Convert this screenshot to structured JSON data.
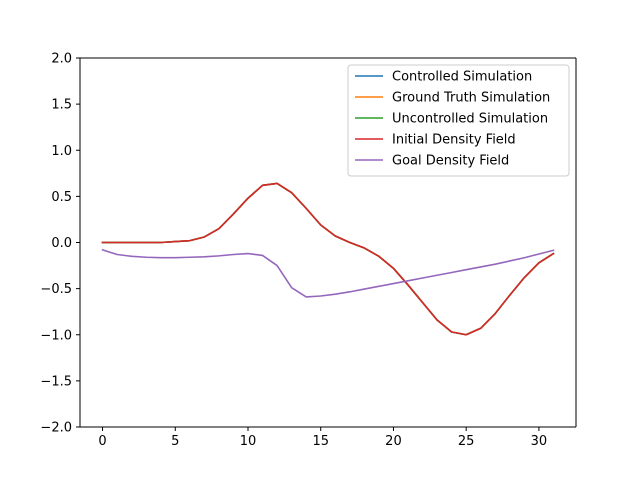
{
  "chart_data": {
    "type": "line",
    "title": "",
    "xlabel": "",
    "ylabel": "",
    "xlim": [
      -1.55,
      32.55
    ],
    "ylim": [
      -2.0,
      2.0
    ],
    "grid": false,
    "legend_position": "top-right",
    "x_ticks": [
      0,
      5,
      10,
      15,
      20,
      25,
      30
    ],
    "x_tick_labels": [
      "0",
      "5",
      "10",
      "15",
      "20",
      "25",
      "30"
    ],
    "y_ticks": [
      2.0,
      1.5,
      1.0,
      0.5,
      0.0,
      -0.5,
      -1.0,
      -1.5,
      -2.0
    ],
    "y_tick_labels": [
      "2.0",
      "1.5",
      "1.0",
      "0.5",
      "0.0",
      "−0.5",
      "−1.0",
      "−1.5",
      "−2.0"
    ],
    "x": [
      0,
      1,
      2,
      3,
      4,
      5,
      6,
      7,
      8,
      9,
      10,
      11,
      12,
      13,
      14,
      15,
      16,
      17,
      18,
      19,
      20,
      21,
      22,
      23,
      24,
      25,
      26,
      27,
      28,
      29,
      30,
      31
    ],
    "series": [
      {
        "name": "Controlled Simulation",
        "color": "#1f77b4",
        "values": [
          0.0,
          0.0,
          0.0,
          0.0,
          0.0,
          0.01,
          0.02,
          0.06,
          0.15,
          0.31,
          0.48,
          0.62,
          0.64,
          0.54,
          0.37,
          0.19,
          0.07,
          0.0,
          -0.06,
          -0.15,
          -0.28,
          -0.46,
          -0.65,
          -0.84,
          -0.97,
          -1.0,
          -0.93,
          -0.77,
          -0.57,
          -0.38,
          -0.22,
          -0.12
        ]
      },
      {
        "name": "Ground Truth Simulation",
        "color": "#ff7f0e",
        "values": [
          0.0,
          0.0,
          0.0,
          0.0,
          0.0,
          0.01,
          0.02,
          0.06,
          0.15,
          0.31,
          0.48,
          0.62,
          0.64,
          0.54,
          0.37,
          0.19,
          0.07,
          0.0,
          -0.06,
          -0.15,
          -0.28,
          -0.46,
          -0.65,
          -0.84,
          -0.97,
          -1.0,
          -0.93,
          -0.77,
          -0.57,
          -0.38,
          -0.22,
          -0.12
        ]
      },
      {
        "name": "Uncontrolled Simulation",
        "color": "#2ca02c",
        "values": [
          0.0,
          0.0,
          0.0,
          0.0,
          0.0,
          0.01,
          0.02,
          0.06,
          0.15,
          0.31,
          0.48,
          0.62,
          0.64,
          0.54,
          0.37,
          0.19,
          0.07,
          0.0,
          -0.06,
          -0.15,
          -0.28,
          -0.46,
          -0.65,
          -0.84,
          -0.97,
          -1.0,
          -0.93,
          -0.77,
          -0.57,
          -0.38,
          -0.22,
          -0.12
        ]
      },
      {
        "name": "Initial Density Field",
        "color": "#d62728",
        "values": [
          0.0,
          0.0,
          0.0,
          0.0,
          0.0,
          0.01,
          0.02,
          0.06,
          0.15,
          0.31,
          0.48,
          0.62,
          0.64,
          0.54,
          0.37,
          0.19,
          0.07,
          0.0,
          -0.06,
          -0.15,
          -0.28,
          -0.46,
          -0.65,
          -0.84,
          -0.97,
          -1.0,
          -0.93,
          -0.77,
          -0.57,
          -0.38,
          -0.22,
          -0.12
        ]
      },
      {
        "name": "Goal Density Field",
        "color": "#9467bd",
        "values": [
          -0.08,
          -0.13,
          -0.15,
          -0.16,
          -0.165,
          -0.165,
          -0.16,
          -0.155,
          -0.145,
          -0.13,
          -0.12,
          -0.14,
          -0.25,
          -0.49,
          -0.59,
          -0.58,
          -0.56,
          -0.535,
          -0.505,
          -0.475,
          -0.445,
          -0.415,
          -0.385,
          -0.355,
          -0.325,
          -0.295,
          -0.265,
          -0.235,
          -0.2,
          -0.165,
          -0.125,
          -0.085
        ]
      }
    ]
  }
}
